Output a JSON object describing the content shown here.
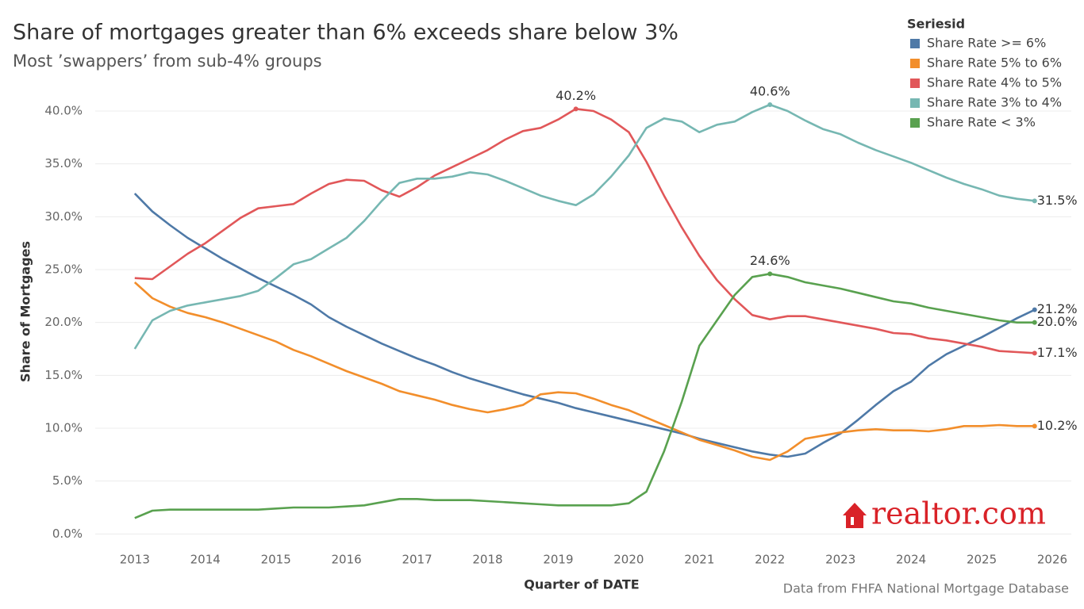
{
  "chart_data": {
    "type": "line",
    "title": "Share of mortgages greater than  6% exceeds share below 3%",
    "subtitle": "Most ’swappers’ from sub-4% groups",
    "x_label": "Quarter of DATE",
    "y_label": "Share of Mortgages",
    "legend_title": "Seriesid",
    "legend_position": "top-right",
    "source": "Data from FHFA National Mortgage Database",
    "logo": "realtor.com",
    "grid": true,
    "x": [
      2013,
      2013.25,
      2013.5,
      2013.75,
      2014,
      2014.25,
      2014.5,
      2014.75,
      2015,
      2015.25,
      2015.5,
      2015.75,
      2016,
      2016.25,
      2016.5,
      2016.75,
      2017,
      2017.25,
      2017.5,
      2017.75,
      2018,
      2018.25,
      2018.5,
      2018.75,
      2019,
      2019.25,
      2019.5,
      2019.75,
      2020,
      2020.25,
      2020.5,
      2020.75,
      2021,
      2021.25,
      2021.5,
      2021.75,
      2022,
      2022.25,
      2022.5,
      2022.75,
      2023,
      2023.25,
      2023.5,
      2023.75,
      2024,
      2024.25,
      2024.5,
      2024.75,
      2025,
      2025.25,
      2025.5,
      2025.75
    ],
    "xlim": [
      2012.44,
      2026.27
    ],
    "xticks": [
      2013,
      2014,
      2015,
      2016,
      2017,
      2018,
      2019,
      2020,
      2021,
      2022,
      2023,
      2024,
      2025,
      2026
    ],
    "ylim": [
      -1.1,
      43
    ],
    "yticks": [
      {
        "value": 0,
        "label": "0.0%"
      },
      {
        "value": 5,
        "label": "5.0%"
      },
      {
        "value": 10,
        "label": "10.0%"
      },
      {
        "value": 15,
        "label": "15.0%"
      },
      {
        "value": 20,
        "label": "20.0%"
      },
      {
        "value": 25,
        "label": "25.0%"
      },
      {
        "value": 30,
        "label": "30.0%"
      },
      {
        "value": 35,
        "label": "35.0%"
      },
      {
        "value": 40,
        "label": "40.0%"
      }
    ],
    "series": [
      {
        "name": "Share Rate >= 6%",
        "color": "#4e79a7",
        "values": [
          32.2,
          30.5,
          29.2,
          28.0,
          27.0,
          26.0,
          25.1,
          24.2,
          23.4,
          22.6,
          21.7,
          20.5,
          19.6,
          18.8,
          18.0,
          17.3,
          16.6,
          16.0,
          15.3,
          14.7,
          14.2,
          13.7,
          13.2,
          12.8,
          12.4,
          11.9,
          11.5,
          11.1,
          10.7,
          10.3,
          9.9,
          9.5,
          9.0,
          8.6,
          8.2,
          7.8,
          7.5,
          7.3,
          7.6,
          8.6,
          9.5,
          10.8,
          12.2,
          13.5,
          14.4,
          15.9,
          17.0,
          17.8,
          18.6,
          19.5,
          20.4,
          21.2
        ],
        "value_labels": [
          null,
          null,
          null,
          null,
          null,
          null,
          null,
          null,
          null,
          null,
          null,
          null,
          null,
          null,
          null,
          null,
          null,
          null,
          null,
          null,
          null,
          null,
          null,
          null,
          null,
          null,
          null,
          null,
          null,
          null,
          null,
          null,
          null,
          null,
          null,
          null,
          null,
          null,
          null,
          null,
          null,
          null,
          null,
          null,
          null,
          null,
          null,
          null,
          null,
          null,
          null,
          "21.2%"
        ]
      },
      {
        "name": "Share Rate 5% to 6%",
        "color": "#f28e2b",
        "values": [
          23.8,
          22.3,
          21.5,
          20.9,
          20.5,
          20.0,
          19.4,
          18.8,
          18.2,
          17.4,
          16.8,
          16.1,
          15.4,
          14.8,
          14.2,
          13.5,
          13.1,
          12.7,
          12.2,
          11.8,
          11.5,
          11.8,
          12.2,
          13.2,
          13.4,
          13.3,
          12.8,
          12.2,
          11.7,
          11.0,
          10.3,
          9.6,
          8.9,
          8.4,
          7.9,
          7.3,
          7.0,
          7.8,
          9.0,
          9.3,
          9.6,
          9.8,
          9.9,
          9.8,
          9.8,
          9.7,
          9.9,
          10.2,
          10.2,
          10.3,
          10.2,
          10.2
        ],
        "value_labels": [
          null,
          null,
          null,
          null,
          null,
          null,
          null,
          null,
          null,
          null,
          null,
          null,
          null,
          null,
          null,
          null,
          null,
          null,
          null,
          null,
          null,
          null,
          null,
          null,
          null,
          null,
          null,
          null,
          null,
          null,
          null,
          null,
          null,
          null,
          null,
          null,
          null,
          null,
          null,
          null,
          null,
          null,
          null,
          null,
          null,
          null,
          null,
          null,
          null,
          null,
          null,
          "10.2%"
        ]
      },
      {
        "name": "Share Rate 4% to 5%",
        "color": "#e15759",
        "values": [
          24.2,
          24.1,
          25.3,
          26.5,
          27.5,
          28.7,
          29.9,
          30.8,
          31.0,
          31.2,
          32.2,
          33.1,
          33.5,
          33.4,
          32.5,
          31.9,
          32.8,
          33.9,
          34.7,
          35.5,
          36.3,
          37.3,
          38.1,
          38.4,
          39.2,
          40.2,
          40.0,
          39.2,
          38.0,
          35.2,
          32.0,
          29.0,
          26.3,
          24.0,
          22.2,
          20.7,
          20.3,
          20.6,
          20.6,
          20.3,
          20.0,
          19.7,
          19.4,
          19.0,
          18.9,
          18.5,
          18.3,
          18.0,
          17.7,
          17.3,
          17.2,
          17.1
        ],
        "value_labels": [
          null,
          null,
          null,
          null,
          null,
          null,
          null,
          null,
          null,
          null,
          null,
          null,
          null,
          null,
          null,
          null,
          null,
          null,
          null,
          null,
          null,
          null,
          null,
          null,
          null,
          "40.2%",
          null,
          null,
          null,
          null,
          null,
          null,
          null,
          null,
          null,
          null,
          null,
          null,
          null,
          null,
          null,
          null,
          null,
          null,
          null,
          null,
          null,
          null,
          null,
          null,
          null,
          "17.1%"
        ]
      },
      {
        "name": "Share Rate 3% to 4%",
        "color": "#76b7b2",
        "values": [
          17.5,
          20.2,
          21.1,
          21.6,
          21.9,
          22.2,
          22.5,
          23.0,
          24.2,
          25.5,
          26.0,
          27.0,
          28.0,
          29.6,
          31.5,
          33.2,
          33.6,
          33.6,
          33.8,
          34.2,
          34.0,
          33.4,
          32.7,
          32.0,
          31.5,
          31.1,
          32.1,
          33.8,
          35.8,
          38.4,
          39.3,
          39.0,
          38.0,
          38.7,
          39.0,
          39.9,
          40.6,
          40.0,
          39.1,
          38.3,
          37.8,
          37.0,
          36.3,
          35.7,
          35.1,
          34.4,
          33.7,
          33.1,
          32.6,
          32.0,
          31.7,
          31.5
        ],
        "value_labels": [
          null,
          null,
          null,
          null,
          null,
          null,
          null,
          null,
          null,
          null,
          null,
          null,
          null,
          null,
          null,
          null,
          null,
          null,
          null,
          null,
          null,
          null,
          null,
          null,
          null,
          null,
          null,
          null,
          null,
          null,
          null,
          null,
          null,
          null,
          null,
          null,
          "40.6%",
          null,
          null,
          null,
          null,
          null,
          null,
          null,
          null,
          null,
          null,
          null,
          null,
          null,
          null,
          "31.5%"
        ]
      },
      {
        "name": "Share Rate < 3%",
        "color": "#59a14f",
        "values": [
          1.5,
          2.2,
          2.3,
          2.3,
          2.3,
          2.3,
          2.3,
          2.3,
          2.4,
          2.5,
          2.5,
          2.5,
          2.6,
          2.7,
          3.0,
          3.3,
          3.3,
          3.2,
          3.2,
          3.2,
          3.1,
          3.0,
          2.9,
          2.8,
          2.7,
          2.7,
          2.7,
          2.7,
          2.9,
          4.0,
          7.8,
          12.5,
          17.8,
          20.2,
          22.6,
          24.3,
          24.6,
          24.3,
          23.8,
          23.5,
          23.2,
          22.8,
          22.4,
          22.0,
          21.8,
          21.4,
          21.1,
          20.8,
          20.5,
          20.2,
          20.0,
          20.0
        ],
        "value_labels": [
          null,
          null,
          null,
          null,
          null,
          null,
          null,
          null,
          null,
          null,
          null,
          null,
          null,
          null,
          null,
          null,
          null,
          null,
          null,
          null,
          null,
          null,
          null,
          null,
          null,
          null,
          null,
          null,
          null,
          null,
          null,
          null,
          null,
          null,
          null,
          null,
          "24.6%",
          null,
          null,
          null,
          null,
          null,
          null,
          null,
          null,
          null,
          null,
          null,
          null,
          null,
          null,
          "20.0%"
        ]
      }
    ]
  }
}
